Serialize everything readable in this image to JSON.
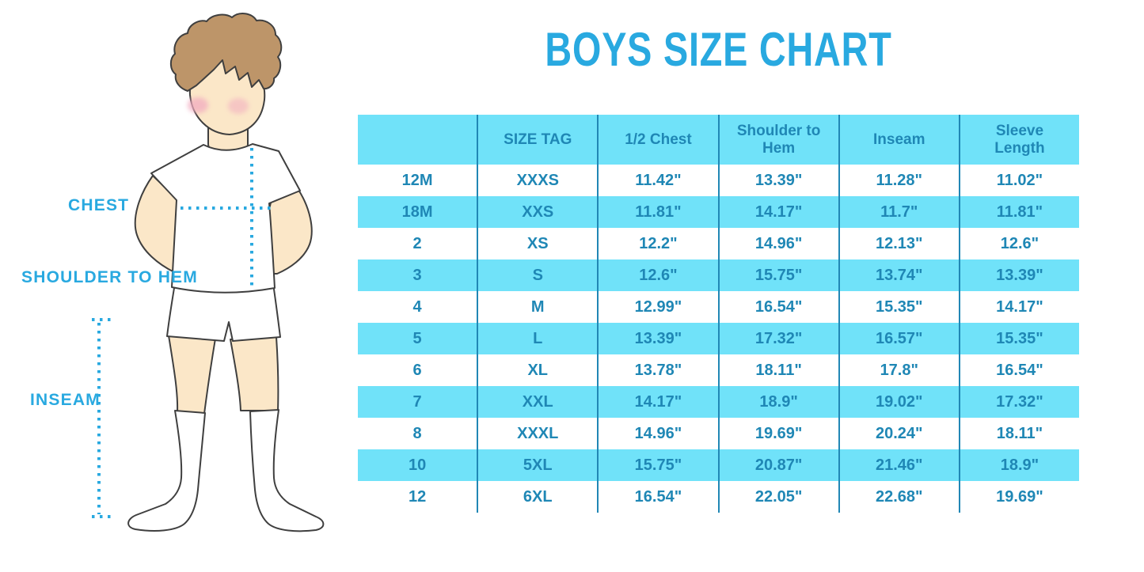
{
  "title": "BOYS SIZE CHART",
  "colors": {
    "accent": "#29A9E0",
    "row_cyan": "#70E2F9",
    "table_text": "#1F87B5",
    "divider": "#2187B5",
    "skin": "#FBE7C8",
    "hair": "#BD9569",
    "blush": "#F2ACC0",
    "outline": "#3F3F3F"
  },
  "figure_labels": {
    "chest": "CHEST",
    "shoulder_to_hem": "SHOULDER TO HEM",
    "inseam": "INSEAM"
  },
  "chart_data": {
    "type": "table",
    "title": "BOYS SIZE CHART",
    "columns": [
      "",
      "SIZE TAG",
      "1/2 Chest",
      "Shoulder to Hem",
      "Inseam",
      "Sleeve Length"
    ],
    "rows": [
      [
        "12M",
        "XXXS",
        "11.42\"",
        "13.39\"",
        "11.28\"",
        "11.02\""
      ],
      [
        "18M",
        "XXS",
        "11.81\"",
        "14.17\"",
        "11.7\"",
        "11.81\""
      ],
      [
        "2",
        "XS",
        "12.2\"",
        "14.96\"",
        "12.13\"",
        "12.6\""
      ],
      [
        "3",
        "S",
        "12.6\"",
        "15.75\"",
        "13.74\"",
        "13.39\""
      ],
      [
        "4",
        "M",
        "12.99\"",
        "16.54\"",
        "15.35\"",
        "14.17\""
      ],
      [
        "5",
        "L",
        "13.39\"",
        "17.32\"",
        "16.57\"",
        "15.35\""
      ],
      [
        "6",
        "XL",
        "13.78\"",
        "18.11\"",
        "17.8\"",
        "16.54\""
      ],
      [
        "7",
        "XXL",
        "14.17\"",
        "18.9\"",
        "19.02\"",
        "17.32\""
      ],
      [
        "8",
        "XXXL",
        "14.96\"",
        "19.69\"",
        "20.24\"",
        "18.11\""
      ],
      [
        "10",
        "5XL",
        "15.75\"",
        "20.87\"",
        "21.46\"",
        "18.9\""
      ],
      [
        "12",
        "6XL",
        "16.54\"",
        "22.05\"",
        "22.68\"",
        "19.69\""
      ]
    ],
    "header_background": "#70E2F9",
    "row_striping": "alternating white and cyan, starting white",
    "grid": "vertical dividers only",
    "legend": "none"
  }
}
